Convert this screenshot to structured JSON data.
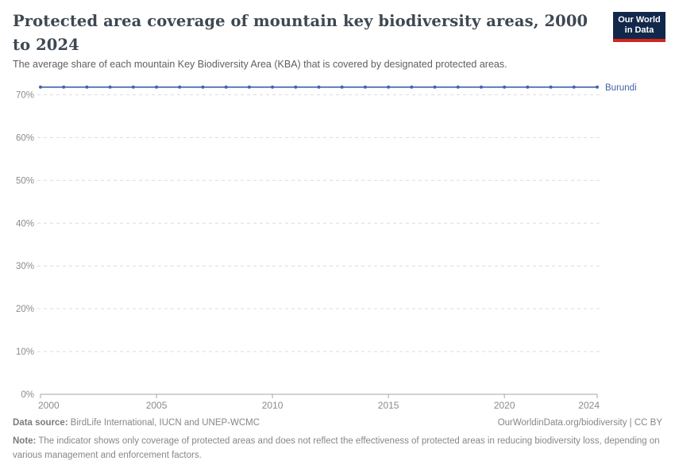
{
  "header": {
    "title": "Protected area coverage of mountain key biodiversity areas, 2000 to 2024",
    "subtitle": "The average share of each mountain Key Biodiversity Area (KBA) that is covered by designated protected areas.",
    "logo": {
      "line1": "Our World",
      "line2": "in Data"
    }
  },
  "colors": {
    "series_blue": "#4262AB",
    "logo_bg": "#12284B",
    "logo_bar": "#D0271D"
  },
  "chart_data": {
    "type": "line",
    "title": "Protected area coverage of mountain key biodiversity areas, 2000 to 2024",
    "x": [
      2000,
      2001,
      2002,
      2003,
      2004,
      2005,
      2006,
      2007,
      2008,
      2009,
      2010,
      2011,
      2012,
      2013,
      2014,
      2015,
      2016,
      2017,
      2018,
      2019,
      2020,
      2021,
      2022,
      2023,
      2024
    ],
    "series": [
      {
        "name": "Burundi",
        "color": "#4262AB",
        "values": [
          71.8,
          71.8,
          71.8,
          71.8,
          71.8,
          71.8,
          71.8,
          71.8,
          71.8,
          71.8,
          71.8,
          71.8,
          71.8,
          71.8,
          71.8,
          71.8,
          71.8,
          71.8,
          71.8,
          71.8,
          71.8,
          71.8,
          71.8,
          71.8,
          71.8
        ]
      }
    ],
    "xlim": [
      2000,
      2024
    ],
    "ylim": [
      0,
      70
    ],
    "xticks": [
      2000,
      2005,
      2010,
      2015,
      2020,
      2024
    ],
    "yticks": [
      0,
      10,
      20,
      30,
      40,
      50,
      60,
      70
    ],
    "ytick_suffix": "%",
    "grid": "dashed horizontal",
    "legend_position": "right-of-line-end",
    "xlabel": "",
    "ylabel": ""
  },
  "footer": {
    "data_source_label": "Data source:",
    "data_source_text": "BirdLife International, IUCN and UNEP-WCMC",
    "attribution": "OurWorldinData.org/biodiversity | CC BY",
    "note_label": "Note:",
    "note_text": "The indicator shows only coverage of protected areas and does not reflect the effectiveness of protected areas in reducing biodiversity loss, depending on various management and enforcement factors."
  }
}
